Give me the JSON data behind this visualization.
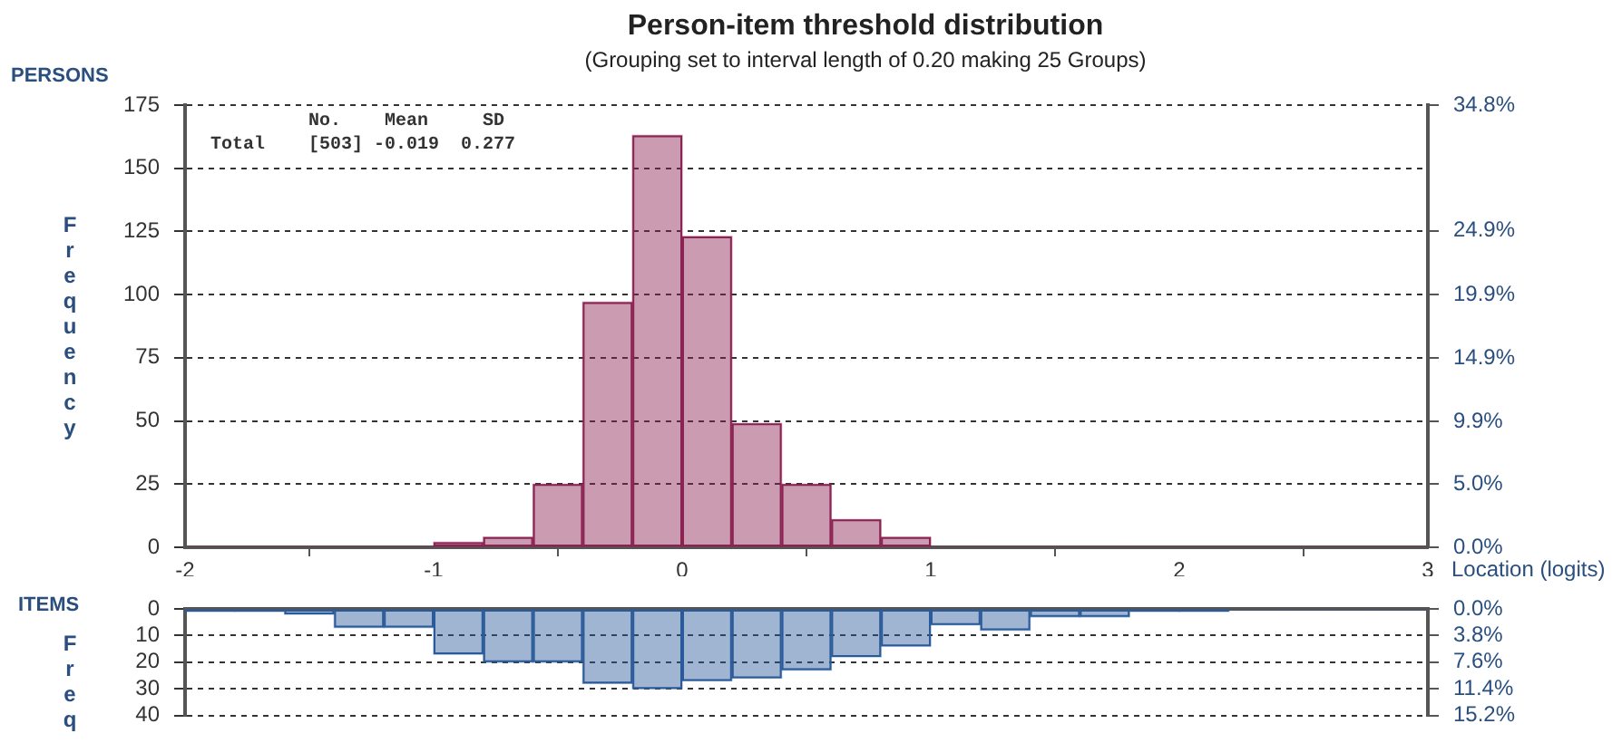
{
  "chart_data": [
    {
      "type": "histogram",
      "title": "Person-item threshold distribution",
      "subtitle": "(Grouping set to interval length of 0.20 making 25 Groups)",
      "xlabel": "Location (logits)",
      "ylabel": "Frequency",
      "annotations": [
        "PERSONS",
        "         No.    Mean     SD",
        "Total    [503] -0.019  0.277"
      ],
      "bins": [
        -2,
        -1.8,
        -1.6,
        -1.4,
        -1.2,
        -1,
        -0.8,
        -0.6,
        -0.4,
        -0.2,
        0,
        0.2,
        0.4,
        0.6,
        0.8,
        1,
        1.2,
        1.4,
        1.6,
        1.8,
        2,
        2.2,
        2.4,
        2.6,
        2.8,
        3
      ],
      "values": [
        0,
        0,
        0,
        0,
        0,
        2,
        4,
        25,
        97,
        163,
        123,
        49,
        25,
        11,
        4,
        0,
        0,
        0,
        0,
        0,
        0,
        0,
        0,
        0,
        0
      ],
      "color": "#8b2252",
      "xlim": [
        -2,
        3
      ],
      "xticks": [
        -2,
        -1,
        0,
        1,
        2,
        3
      ],
      "ylim": [
        0,
        175
      ],
      "yticks": [
        0,
        25,
        50,
        75,
        100,
        125,
        150,
        175
      ],
      "y2lim": [
        0,
        34.8
      ],
      "y2ticks": [
        {
          "value": 0,
          "label": "0.0%"
        },
        {
          "value": 5,
          "label": "5.0%"
        },
        {
          "value": 9.9,
          "label": "9.9%"
        },
        {
          "value": 14.9,
          "label": "14.9%"
        },
        {
          "value": 19.9,
          "label": "19.9%"
        },
        {
          "value": 24.9,
          "label": "24.9%"
        },
        {
          "value": 34.8,
          "label": "34.8%"
        }
      ],
      "grid": "y"
    },
    {
      "type": "histogram",
      "ylabel": "Freq",
      "annotations": [
        "ITEMS"
      ],
      "bins": [
        -2,
        -1.8,
        -1.6,
        -1.4,
        -1.2,
        -1,
        -0.8,
        -0.6,
        -0.4,
        -0.2,
        0,
        0.2,
        0.4,
        0.6,
        0.8,
        1,
        1.2,
        1.4,
        1.6,
        1.8,
        2,
        2.2,
        2.4,
        2.6,
        2.8,
        3
      ],
      "values": [
        1,
        1,
        2,
        7,
        7,
        17,
        20,
        20,
        28,
        30,
        27,
        26,
        23,
        18,
        14,
        6,
        8,
        3,
        3,
        1,
        1,
        0,
        0,
        0,
        0
      ],
      "color": "#2a5a9a",
      "xlim": [
        -2,
        3
      ],
      "xticks": [
        -2,
        -1,
        0,
        1,
        2,
        3
      ],
      "ylim": [
        40,
        0
      ],
      "yticks": [
        0,
        10,
        20,
        30,
        40
      ],
      "y2lim": [
        15.2,
        0
      ],
      "y2ticks": [
        {
          "value": 0,
          "label": "0.0%"
        },
        {
          "value": 3.8,
          "label": "3.8%"
        },
        {
          "value": 7.6,
          "label": "7.6%"
        },
        {
          "value": 11.4,
          "label": "11.4%"
        },
        {
          "value": 15.2,
          "label": "15.2%"
        }
      ],
      "grid": "y",
      "tick_labels": "y"
    }
  ]
}
